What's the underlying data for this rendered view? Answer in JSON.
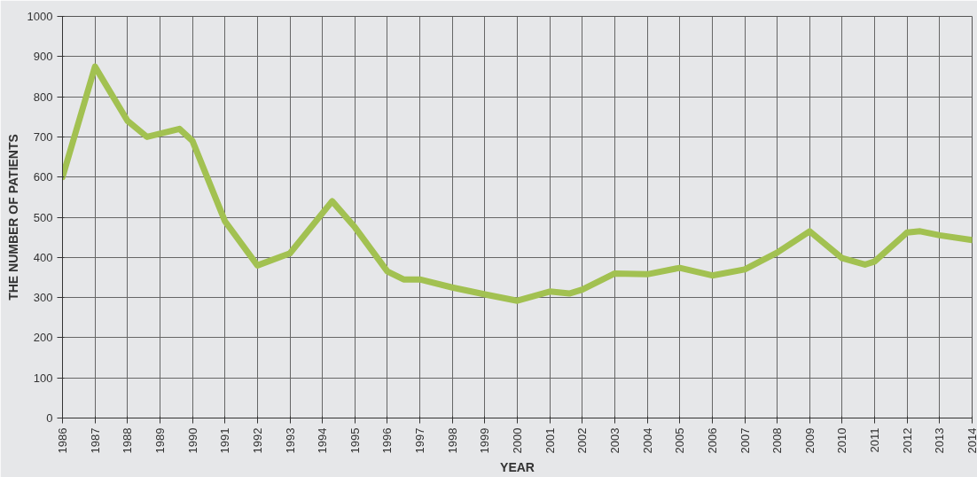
{
  "chart_data": {
    "type": "line",
    "xlabel": "YEAR",
    "ylabel": "THE NUMBER OF PATIENTS",
    "x": [
      1986,
      1987,
      1988,
      1988.6,
      1989.6,
      1990,
      1991,
      1992,
      1993,
      1994.3,
      1995,
      1996,
      1996.5,
      1997,
      1998,
      1999,
      2000,
      2001,
      2001.6,
      2002,
      2003,
      2004,
      2005,
      2006,
      2007,
      2008,
      2009,
      2010,
      2010.7,
      2011,
      2012,
      2012.4,
      2013,
      2014
    ],
    "series": [
      {
        "color": "#a2c151",
        "values": [
          600,
          875,
          740,
          700,
          720,
          690,
          490,
          380,
          410,
          540,
          475,
          365,
          345,
          345,
          325,
          308,
          292,
          315,
          310,
          320,
          360,
          358,
          374,
          355,
          370,
          412,
          465,
          398,
          382,
          390,
          462,
          465,
          455,
          443
        ]
      }
    ],
    "xlim": [
      1986,
      2014
    ],
    "xticks": [
      1986,
      1987,
      1988,
      1989,
      1990,
      1991,
      1992,
      1993,
      1994,
      1995,
      1996,
      1997,
      1998,
      1999,
      2000,
      2001,
      2002,
      2003,
      2004,
      2005,
      2006,
      2007,
      2008,
      2009,
      2010,
      2011,
      2012,
      2013,
      2014
    ],
    "ylim": [
      0,
      1000
    ],
    "yticks": [
      0,
      100,
      200,
      300,
      400,
      500,
      600,
      700,
      800,
      900,
      1000
    ],
    "grid": true,
    "marker": "none",
    "line_style": "solid"
  }
}
